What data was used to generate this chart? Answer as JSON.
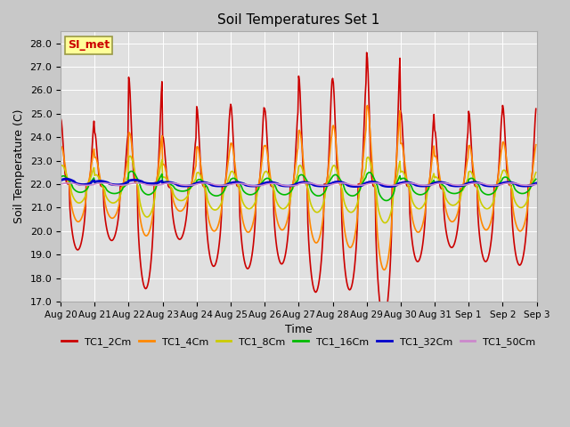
{
  "title": "Soil Temperatures Set 1",
  "xlabel": "Time",
  "ylabel": "Soil Temperature (C)",
  "ylim": [
    17.0,
    28.5
  ],
  "yticks": [
    17.0,
    18.0,
    19.0,
    20.0,
    21.0,
    22.0,
    23.0,
    24.0,
    25.0,
    26.0,
    27.0,
    28.0
  ],
  "fig_bg": "#c8c8c8",
  "plot_bg": "#e0e0e0",
  "grid_color": "#ffffff",
  "series": [
    {
      "label": "TC1_2Cm",
      "color": "#cc0000",
      "lw": 1.2
    },
    {
      "label": "TC1_4Cm",
      "color": "#ff8800",
      "lw": 1.2
    },
    {
      "label": "TC1_8Cm",
      "color": "#cccc00",
      "lw": 1.2
    },
    {
      "label": "TC1_16Cm",
      "color": "#00bb00",
      "lw": 1.2
    },
    {
      "label": "TC1_32Cm",
      "color": "#0000cc",
      "lw": 2.0
    },
    {
      "label": "TC1_50Cm",
      "color": "#cc88cc",
      "lw": 1.2
    }
  ],
  "annotation": {
    "text": "SI_met",
    "color": "#cc0000",
    "bg": "#ffff99",
    "border": "#999944"
  },
  "xtick_labels": [
    "Aug 20",
    "Aug 21",
    "Aug 22",
    "Aug 23",
    "Aug 24",
    "Aug 25",
    "Aug 26",
    "Aug 27",
    "Aug 28",
    "Aug 29",
    "Aug 30",
    "Aug 31",
    "Sep 1",
    "Sep 2",
    "Sep 3"
  ],
  "base_temp": 22.0,
  "num_days": 14,
  "pts_per_day": 48
}
